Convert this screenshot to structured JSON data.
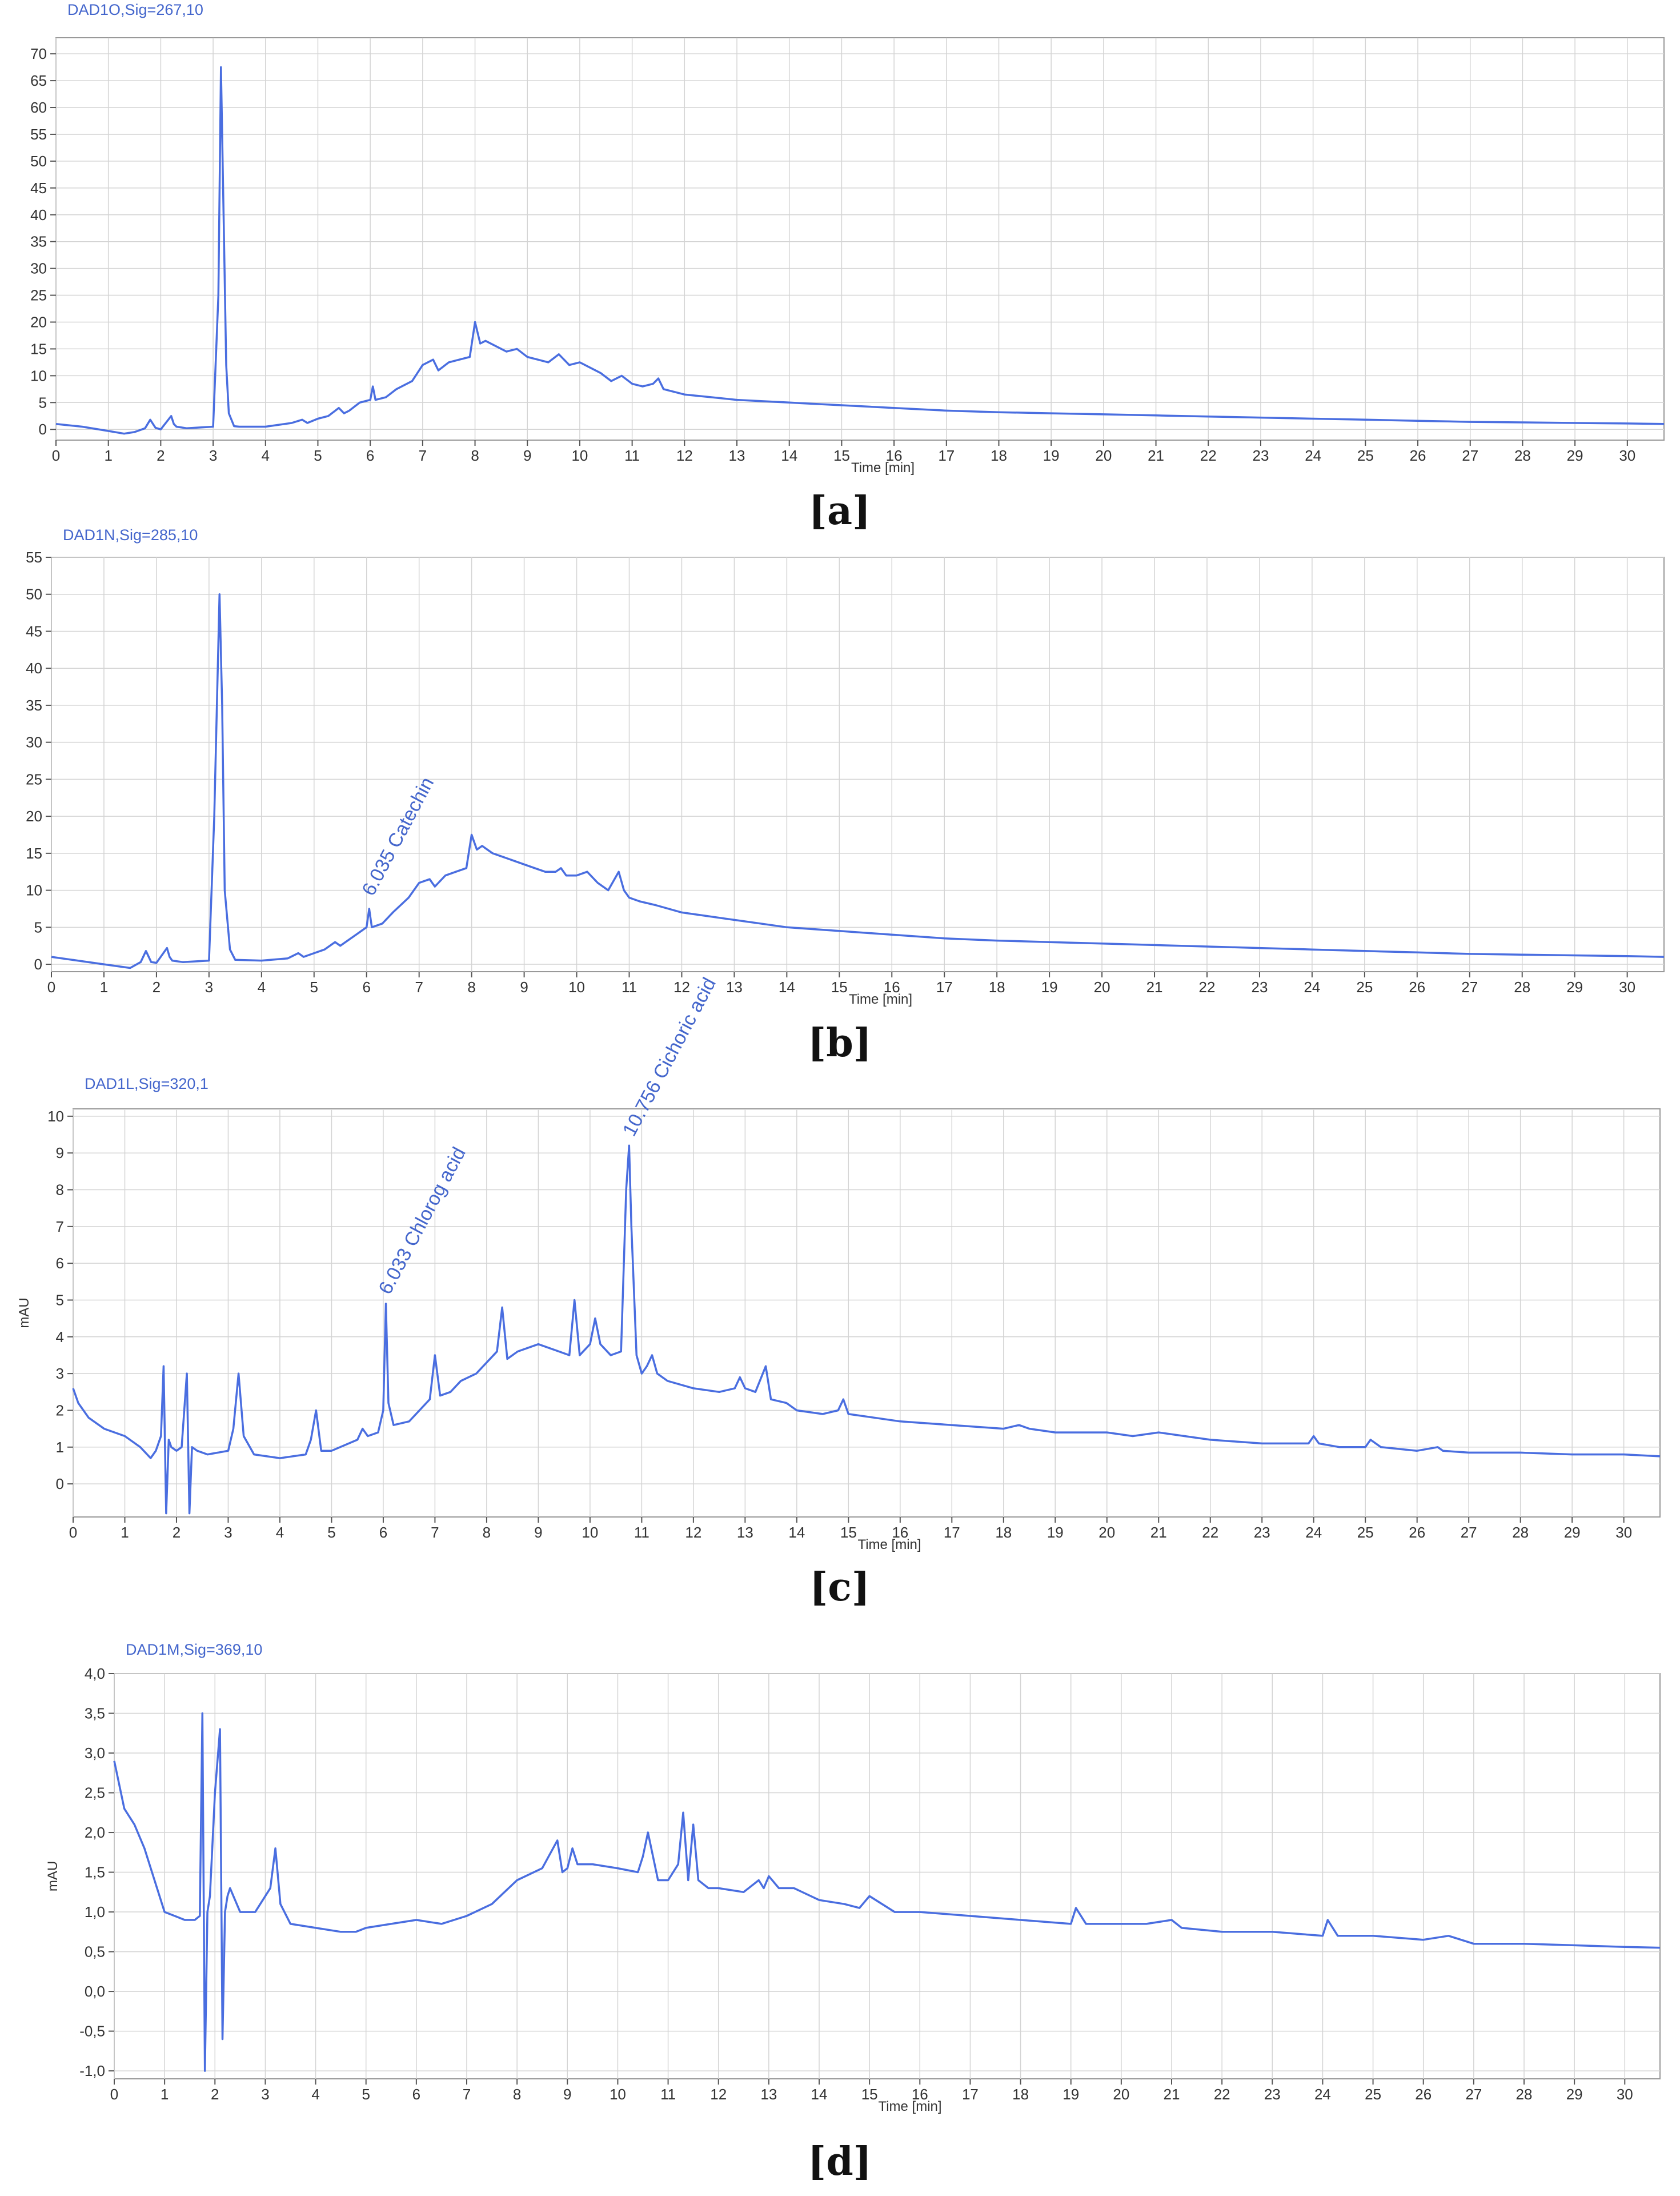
{
  "chart_data": [
    {
      "type": "line",
      "panel_label": "[a]",
      "title": "DAD1O,Sig=267,10",
      "xlabel": "Time [min]",
      "ylabel": "",
      "xlim": [
        0,
        30.7
      ],
      "ylim": [
        -2,
        73
      ],
      "xticks": [
        0,
        1,
        2,
        3,
        4,
        5,
        6,
        7,
        8,
        9,
        10,
        11,
        12,
        13,
        14,
        15,
        16,
        17,
        18,
        19,
        20,
        21,
        22,
        23,
        24,
        25,
        26,
        27,
        28,
        29,
        30
      ],
      "yticks": [
        0,
        5,
        10,
        15,
        20,
        25,
        30,
        35,
        40,
        45,
        50,
        55,
        60,
        65,
        70
      ],
      "ytick_labels": [
        "0",
        "5",
        "10",
        "15",
        "20",
        "25",
        "30",
        "35",
        "40",
        "45",
        "50",
        "55",
        "60",
        "65",
        "70"
      ],
      "grid": true,
      "color": "#4a6ee0",
      "series": [
        {
          "x": [
            0,
            0.5,
            1,
            1.3,
            1.5,
            1.7,
            1.8,
            1.9,
            2.0,
            2.2,
            2.25,
            2.3,
            2.5,
            3.0,
            3.1,
            3.15,
            3.2,
            3.25,
            3.3,
            3.4,
            3.5,
            4.0,
            4.5,
            4.7,
            4.8,
            5.0,
            5.2,
            5.4,
            5.5,
            5.6,
            5.8,
            6.0,
            6.05,
            6.1,
            6.3,
            6.5,
            6.8,
            7.0,
            7.2,
            7.3,
            7.5,
            7.7,
            7.9,
            8.0,
            8.1,
            8.2,
            8.4,
            8.6,
            8.8,
            9.0,
            9.2,
            9.4,
            9.6,
            9.8,
            10.0,
            10.2,
            10.4,
            10.6,
            10.8,
            11.0,
            11.2,
            11.4,
            11.5,
            11.6,
            12.0,
            12.5,
            13.0,
            14.0,
            15.0,
            16.0,
            17.0,
            18.0,
            19.0,
            20.0,
            21.0,
            22.0,
            23.0,
            24.0,
            25.0,
            26.0,
            27.0,
            28.0,
            29.0,
            30.0,
            30.7
          ],
          "y": [
            1.0,
            0.5,
            -0.3,
            -0.8,
            -0.5,
            0.2,
            1.8,
            0.3,
            0.0,
            2.5,
            1.0,
            0.5,
            0.2,
            0.5,
            25,
            67.5,
            40,
            12,
            3.0,
            0.6,
            0.5,
            0.5,
            1.2,
            1.8,
            1.2,
            2.0,
            2.5,
            4.0,
            3.0,
            3.5,
            5.0,
            5.5,
            8.0,
            5.5,
            6.0,
            7.5,
            9.0,
            12.0,
            13.0,
            11.0,
            12.5,
            13.0,
            13.5,
            20.0,
            16.0,
            16.5,
            15.5,
            14.5,
            15.0,
            13.5,
            13.0,
            12.5,
            14.0,
            12.0,
            12.5,
            11.5,
            10.5,
            9.0,
            10.0,
            8.5,
            8.0,
            8.5,
            9.5,
            7.5,
            6.5,
            6.0,
            5.5,
            5.0,
            4.5,
            4.0,
            3.5,
            3.2,
            3.0,
            2.8,
            2.6,
            2.4,
            2.2,
            2.0,
            1.8,
            1.6,
            1.4,
            1.3,
            1.2,
            1.1,
            1.0
          ]
        }
      ]
    },
    {
      "type": "line",
      "panel_label": "[b]",
      "title": "DAD1N,Sig=285,10",
      "xlabel": "Time [min]",
      "ylabel": "",
      "xlim": [
        0,
        30.7
      ],
      "ylim": [
        -1,
        55
      ],
      "xticks": [
        0,
        1,
        2,
        3,
        4,
        5,
        6,
        7,
        8,
        9,
        10,
        11,
        12,
        13,
        14,
        15,
        16,
        17,
        18,
        19,
        20,
        21,
        22,
        23,
        24,
        25,
        26,
        27,
        28,
        29,
        30
      ],
      "yticks": [
        0,
        5,
        10,
        15,
        20,
        25,
        30,
        35,
        40,
        45,
        50,
        55
      ],
      "ytick_labels": [
        "0",
        "5",
        "10",
        "15",
        "20",
        "25",
        "30",
        "35",
        "40",
        "45",
        "50",
        "55"
      ],
      "grid": true,
      "color": "#4a6ee0",
      "annotations": [
        {
          "text": "6.035 Catechin",
          "x": 6.035,
          "y": 8.0
        }
      ],
      "series": [
        {
          "x": [
            0,
            0.5,
            1,
            1.5,
            1.7,
            1.8,
            1.9,
            2.0,
            2.2,
            2.25,
            2.3,
            2.5,
            3.0,
            3.1,
            3.2,
            3.25,
            3.3,
            3.4,
            3.5,
            4.0,
            4.5,
            4.7,
            4.8,
            5.0,
            5.2,
            5.4,
            5.5,
            5.6,
            5.8,
            6.0,
            6.05,
            6.1,
            6.3,
            6.5,
            6.8,
            7.0,
            7.2,
            7.3,
            7.5,
            7.7,
            7.9,
            8.0,
            8.1,
            8.2,
            8.4,
            8.6,
            8.8,
            9.0,
            9.2,
            9.4,
            9.6,
            9.7,
            9.8,
            10.0,
            10.2,
            10.4,
            10.6,
            10.8,
            10.9,
            11.0,
            11.2,
            11.5,
            12.0,
            12.5,
            13.0,
            13.5,
            14.0,
            15.0,
            16.0,
            17.0,
            18.0,
            19.0,
            20.0,
            21.0,
            22.0,
            23.0,
            24.0,
            25.0,
            26.0,
            27.0,
            28.0,
            29.0,
            30.0,
            30.7
          ],
          "y": [
            1.0,
            0.5,
            0.0,
            -0.5,
            0.3,
            1.8,
            0.3,
            0.2,
            2.2,
            1.0,
            0.5,
            0.3,
            0.5,
            20,
            50,
            35,
            10,
            2.0,
            0.6,
            0.5,
            0.8,
            1.5,
            1.0,
            1.5,
            2.0,
            3.0,
            2.5,
            3.0,
            4.0,
            5.0,
            7.5,
            5.0,
            5.5,
            7.0,
            9.0,
            11.0,
            11.5,
            10.5,
            12.0,
            12.5,
            13.0,
            17.5,
            15.5,
            16.0,
            15.0,
            14.5,
            14.0,
            13.5,
            13.0,
            12.5,
            12.5,
            13.0,
            12.0,
            12.0,
            12.5,
            11.0,
            10.0,
            12.5,
            10.0,
            9.0,
            8.5,
            8.0,
            7.0,
            6.5,
            6.0,
            5.5,
            5.0,
            4.5,
            4.0,
            3.5,
            3.2,
            3.0,
            2.8,
            2.6,
            2.4,
            2.2,
            2.0,
            1.8,
            1.6,
            1.4,
            1.3,
            1.2,
            1.1,
            1.0
          ]
        }
      ]
    },
    {
      "type": "line",
      "panel_label": "[c]",
      "title": "DAD1L,Sig=320,1",
      "xlabel": "Time [min]",
      "ylabel": "mAU",
      "xlim": [
        0,
        30.7
      ],
      "ylim": [
        -0.9,
        10.2
      ],
      "xticks": [
        0,
        1,
        2,
        3,
        4,
        5,
        6,
        7,
        8,
        9,
        10,
        11,
        12,
        13,
        14,
        15,
        16,
        17,
        18,
        19,
        20,
        21,
        22,
        23,
        24,
        25,
        26,
        27,
        28,
        29,
        30
      ],
      "yticks": [
        0,
        1,
        2,
        3,
        4,
        5,
        6,
        7,
        8,
        9,
        10
      ],
      "ytick_labels": [
        "0",
        "1",
        "2",
        "3",
        "4",
        "5",
        "6",
        "7",
        "8",
        "9",
        "10"
      ],
      "grid": true,
      "color": "#4a6ee0",
      "annotations": [
        {
          "text": "6.033 Chlorog acid",
          "x": 6.033,
          "y": 4.9
        },
        {
          "text": "10.756 Cichoric acid",
          "x": 10.756,
          "y": 9.2
        }
      ],
      "series": [
        {
          "x": [
            0,
            0.1,
            0.3,
            0.6,
            1.0,
            1.3,
            1.5,
            1.6,
            1.7,
            1.75,
            1.8,
            1.85,
            1.9,
            2.0,
            2.1,
            2.2,
            2.25,
            2.3,
            2.4,
            2.6,
            3.0,
            3.1,
            3.2,
            3.3,
            3.5,
            4.0,
            4.5,
            4.6,
            4.7,
            4.8,
            5.0,
            5.5,
            5.6,
            5.7,
            5.9,
            6.0,
            6.05,
            6.1,
            6.2,
            6.5,
            6.9,
            7.0,
            7.1,
            7.3,
            7.5,
            7.8,
            8.0,
            8.2,
            8.3,
            8.4,
            8.6,
            9.0,
            9.4,
            9.6,
            9.7,
            9.8,
            10.0,
            10.1,
            10.2,
            10.4,
            10.6,
            10.7,
            10.756,
            10.8,
            10.9,
            11.0,
            11.1,
            11.2,
            11.3,
            11.5,
            12.0,
            12.5,
            12.8,
            12.9,
            13.0,
            13.2,
            13.4,
            13.5,
            13.8,
            14.0,
            14.5,
            14.8,
            14.9,
            15.0,
            15.5,
            16.0,
            17.0,
            18.0,
            18.3,
            18.5,
            19.0,
            19.5,
            20.0,
            20.5,
            21.0,
            21.5,
            22.0,
            23.0,
            23.9,
            24.0,
            24.1,
            24.5,
            25.0,
            25.1,
            25.3,
            26.0,
            26.4,
            26.5,
            27.0,
            28.0,
            29.0,
            30.0,
            30.7
          ],
          "y": [
            2.6,
            2.2,
            1.8,
            1.5,
            1.3,
            1.0,
            0.7,
            0.9,
            1.3,
            3.2,
            -0.8,
            1.2,
            1.0,
            0.9,
            1.0,
            3.0,
            -0.8,
            1.0,
            0.9,
            0.8,
            0.9,
            1.5,
            3.0,
            1.3,
            0.8,
            0.7,
            0.8,
            1.2,
            2.0,
            0.9,
            0.9,
            1.2,
            1.5,
            1.3,
            1.4,
            2.0,
            4.9,
            2.2,
            1.6,
            1.7,
            2.3,
            3.5,
            2.4,
            2.5,
            2.8,
            3.0,
            3.3,
            3.6,
            4.8,
            3.4,
            3.6,
            3.8,
            3.6,
            3.5,
            5.0,
            3.5,
            3.8,
            4.5,
            3.8,
            3.5,
            3.6,
            8.0,
            9.2,
            7.0,
            3.5,
            3.0,
            3.2,
            3.5,
            3.0,
            2.8,
            2.6,
            2.5,
            2.6,
            2.9,
            2.6,
            2.5,
            3.2,
            2.3,
            2.2,
            2.0,
            1.9,
            2.0,
            2.3,
            1.9,
            1.8,
            1.7,
            1.6,
            1.5,
            1.6,
            1.5,
            1.4,
            1.4,
            1.4,
            1.3,
            1.4,
            1.3,
            1.2,
            1.1,
            1.1,
            1.3,
            1.1,
            1.0,
            1.0,
            1.2,
            1.0,
            0.9,
            1.0,
            0.9,
            0.85,
            0.85,
            0.8,
            0.8,
            0.75
          ]
        }
      ]
    },
    {
      "type": "line",
      "panel_label": "[d]",
      "title": "DAD1M,Sig=369,10",
      "xlabel": "Time [min]",
      "ylabel": "mAU",
      "xlim": [
        0,
        30.7
      ],
      "ylim": [
        -1.1,
        4.0
      ],
      "xticks": [
        0,
        1,
        2,
        3,
        4,
        5,
        6,
        7,
        8,
        9,
        10,
        11,
        12,
        13,
        14,
        15,
        16,
        17,
        18,
        19,
        20,
        21,
        22,
        23,
        24,
        25,
        26,
        27,
        28,
        29,
        30
      ],
      "yticks": [
        -1.0,
        -0.5,
        0.0,
        0.5,
        1.0,
        1.5,
        2.0,
        2.5,
        3.0,
        3.5,
        4.0
      ],
      "ytick_labels": [
        "-1,0",
        "-0,5",
        "0,0",
        "0,5",
        "1,0",
        "1,5",
        "2,0",
        "2,5",
        "3,0",
        "3,5",
        "4,0"
      ],
      "grid": true,
      "color": "#4a6ee0",
      "series": [
        {
          "x": [
            0,
            0.1,
            0.2,
            0.4,
            0.6,
            0.8,
            1.0,
            1.2,
            1.4,
            1.6,
            1.7,
            1.75,
            1.8,
            1.85,
            1.9,
            2.0,
            2.1,
            2.15,
            2.2,
            2.25,
            2.3,
            2.5,
            2.8,
            3.1,
            3.2,
            3.3,
            3.5,
            4.0,
            4.5,
            4.8,
            5.0,
            5.5,
            6.0,
            6.5,
            7.0,
            7.5,
            8.0,
            8.5,
            8.8,
            8.9,
            9.0,
            9.1,
            9.2,
            9.5,
            10.0,
            10.4,
            10.5,
            10.6,
            10.8,
            11.0,
            11.2,
            11.3,
            11.4,
            11.5,
            11.6,
            11.8,
            12.0,
            12.5,
            12.8,
            12.9,
            13.0,
            13.2,
            13.5,
            14.0,
            14.5,
            14.8,
            15.0,
            15.5,
            16.0,
            17.0,
            18.0,
            19.0,
            19.1,
            19.3,
            20.0,
            20.5,
            21.0,
            21.2,
            22.0,
            23.0,
            24.0,
            24.1,
            24.3,
            25.0,
            26.0,
            26.5,
            27.0,
            28.0,
            29.0,
            30.0,
            30.7
          ],
          "y": [
            2.9,
            2.6,
            2.3,
            2.1,
            1.8,
            1.4,
            1.0,
            0.95,
            0.9,
            0.9,
            0.95,
            3.5,
            -1.0,
            1.0,
            1.2,
            2.5,
            3.3,
            -0.6,
            1.0,
            1.2,
            1.3,
            1.0,
            1.0,
            1.3,
            1.8,
            1.1,
            0.85,
            0.8,
            0.75,
            0.75,
            0.8,
            0.85,
            0.9,
            0.85,
            0.95,
            1.1,
            1.4,
            1.55,
            1.9,
            1.5,
            1.55,
            1.8,
            1.6,
            1.6,
            1.55,
            1.5,
            1.7,
            2.0,
            1.4,
            1.4,
            1.6,
            2.25,
            1.4,
            2.1,
            1.4,
            1.3,
            1.3,
            1.25,
            1.4,
            1.3,
            1.45,
            1.3,
            1.3,
            1.15,
            1.1,
            1.05,
            1.2,
            1.0,
            1.0,
            0.95,
            0.9,
            0.85,
            1.05,
            0.85,
            0.85,
            0.85,
            0.9,
            0.8,
            0.75,
            0.75,
            0.7,
            0.9,
            0.7,
            0.7,
            0.65,
            0.7,
            0.6,
            0.6,
            0.58,
            0.56,
            0.55
          ]
        }
      ]
    }
  ]
}
